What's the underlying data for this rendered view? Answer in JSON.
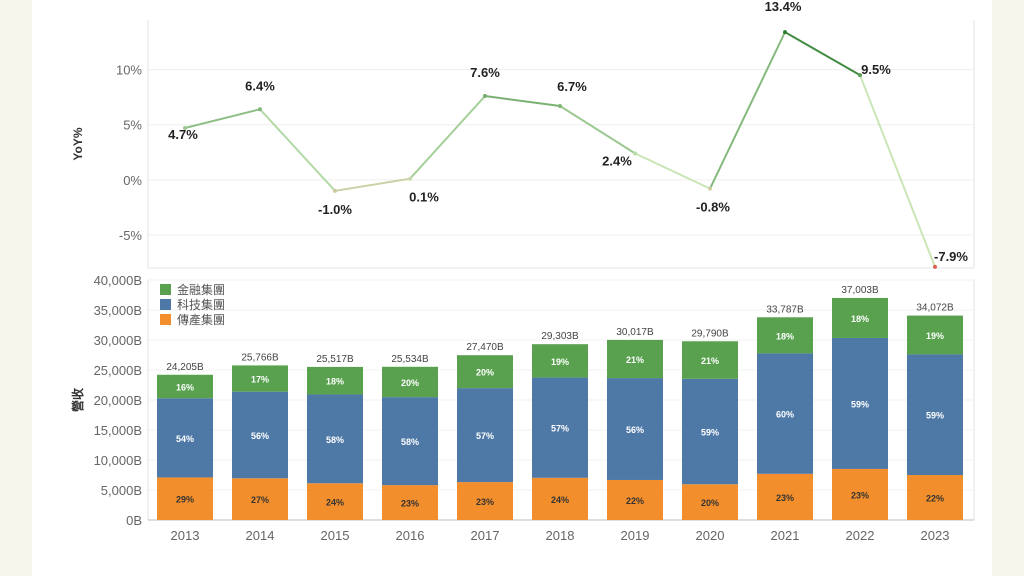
{
  "chart_data": [
    {
      "type": "line",
      "ylabel": "YoY%",
      "categories": [
        "2013",
        "2014",
        "2015",
        "2016",
        "2017",
        "2018",
        "2019",
        "2020",
        "2021",
        "2022",
        "2023"
      ],
      "values": [
        4.7,
        6.4,
        -1.0,
        0.1,
        7.6,
        6.7,
        2.4,
        -0.8,
        13.4,
        9.5,
        -7.9
      ],
      "value_labels": [
        "4.7%",
        "6.4%",
        "-1.0%",
        "0.1%",
        "7.6%",
        "6.7%",
        "2.4%",
        "-0.8%",
        "13.4%",
        "9.5%",
        "-7.9%"
      ],
      "yticks": [
        10,
        5,
        0,
        -5
      ],
      "ytick_labels": [
        "10%",
        "5%",
        "0%",
        "-5%"
      ],
      "ylim": [
        -8,
        14.5
      ],
      "colors": {
        "high": "#2e7d32",
        "mid": "#c9e8b8",
        "low": "#e05a4f"
      }
    },
    {
      "type": "bar",
      "stacked": true,
      "ylabel": "營收",
      "categories": [
        "2013",
        "2014",
        "2015",
        "2016",
        "2017",
        "2018",
        "2019",
        "2020",
        "2021",
        "2022",
        "2023"
      ],
      "totals": [
        24205,
        25766,
        25517,
        25534,
        27470,
        29303,
        30017,
        29790,
        33787,
        37003,
        34072
      ],
      "total_labels": [
        "24,205B",
        "25,766B",
        "25,517B",
        "25,534B",
        "27,470B",
        "29,303B",
        "30,017B",
        "29,790B",
        "33,787B",
        "37,003B",
        "34,072B"
      ],
      "ylim": [
        0,
        40000
      ],
      "yticks": [
        0,
        5000,
        10000,
        15000,
        20000,
        25000,
        30000,
        35000,
        40000
      ],
      "ytick_labels": [
        "0B",
        "5,000B",
        "10,000B",
        "15,000B",
        "20,000B",
        "25,000B",
        "30,000B",
        "35,000B",
        "40,000B"
      ],
      "series": [
        {
          "name": "傳產集團",
          "color": "#f28e2b",
          "pct": [
            29,
            27,
            24,
            23,
            23,
            24,
            22,
            20,
            23,
            23,
            22
          ],
          "pct_labels": [
            "29%",
            "27%",
            "24%",
            "23%",
            "23%",
            "24%",
            "22%",
            "20%",
            "23%",
            "23%",
            "22%"
          ]
        },
        {
          "name": "科技集團",
          "color": "#4e79a7",
          "pct": [
            54,
            56,
            58,
            58,
            57,
            57,
            56,
            59,
            60,
            59,
            59
          ],
          "pct_labels": [
            "54%",
            "56%",
            "58%",
            "58%",
            "57%",
            "57%",
            "56%",
            "59%",
            "60%",
            "59%",
            "59%"
          ]
        },
        {
          "name": "金融集團",
          "color": "#59a14f",
          "pct": [
            16,
            17,
            18,
            20,
            20,
            19,
            21,
            21,
            18,
            18,
            19
          ],
          "pct_labels": [
            "16%",
            "17%",
            "18%",
            "20%",
            "20%",
            "19%",
            "21%",
            "21%",
            "18%",
            "18%",
            "19%"
          ]
        }
      ],
      "legend_order": [
        "金融集團",
        "科技集團",
        "傳產集團"
      ],
      "legend_position": "top-left"
    }
  ]
}
